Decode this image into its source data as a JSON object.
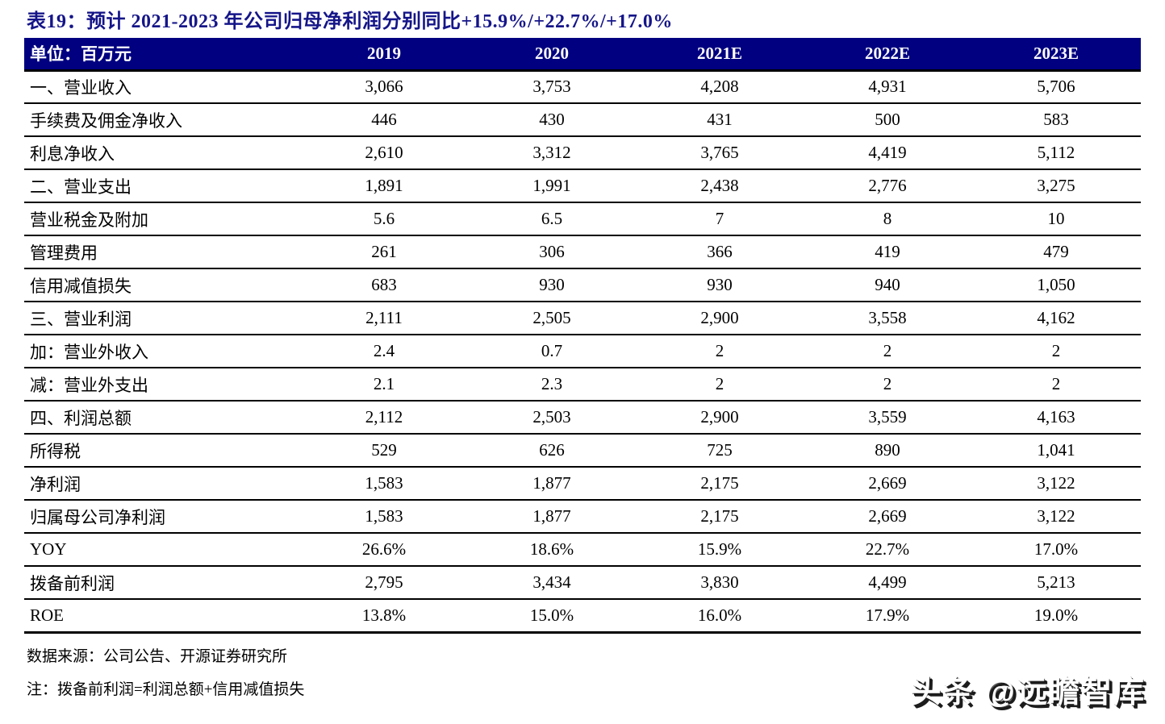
{
  "title": "表19：预计 2021-2023 年公司归母净利润分别同比+15.9%/+22.7%/+17.0%",
  "table": {
    "unit_label": "单位：百万元",
    "columns": [
      "2019",
      "2020",
      "2021E",
      "2022E",
      "2023E"
    ],
    "rows": [
      {
        "label": "一、营业收入",
        "values": [
          "3,066",
          "3,753",
          "4,208",
          "4,931",
          "5,706"
        ]
      },
      {
        "label": "手续费及佣金净收入",
        "values": [
          "446",
          "430",
          "431",
          "500",
          "583"
        ]
      },
      {
        "label": "利息净收入",
        "values": [
          "2,610",
          "3,312",
          "3,765",
          "4,419",
          "5,112"
        ]
      },
      {
        "label": "二、营业支出",
        "values": [
          "1,891",
          "1,991",
          "2,438",
          "2,776",
          "3,275"
        ]
      },
      {
        "label": "营业税金及附加",
        "values": [
          "5.6",
          "6.5",
          "7",
          "8",
          "10"
        ]
      },
      {
        "label": "管理费用",
        "values": [
          "261",
          "306",
          "366",
          "419",
          "479"
        ]
      },
      {
        "label": "信用减值损失",
        "values": [
          "683",
          "930",
          "930",
          "940",
          "1,050"
        ]
      },
      {
        "label": "三、营业利润",
        "values": [
          "2,111",
          "2,505",
          "2,900",
          "3,558",
          "4,162"
        ]
      },
      {
        "label": "加：营业外收入",
        "values": [
          "2.4",
          "0.7",
          "2",
          "2",
          "2"
        ]
      },
      {
        "label": "减：营业外支出",
        "values": [
          "2.1",
          "2.3",
          "2",
          "2",
          "2"
        ]
      },
      {
        "label": "四、利润总额",
        "values": [
          "2,112",
          "2,503",
          "2,900",
          "3,559",
          "4,163"
        ]
      },
      {
        "label": "所得税",
        "values": [
          "529",
          "626",
          "725",
          "890",
          "1,041"
        ]
      },
      {
        "label": "净利润",
        "values": [
          "1,583",
          "1,877",
          "2,175",
          "2,669",
          "3,122"
        ]
      },
      {
        "label": "归属母公司净利润",
        "values": [
          "1,583",
          "1,877",
          "2,175",
          "2,669",
          "3,122"
        ]
      },
      {
        "label": "YOY",
        "values": [
          "26.6%",
          "18.6%",
          "15.9%",
          "22.7%",
          "17.0%"
        ]
      },
      {
        "label": "拨备前利润",
        "values": [
          "2,795",
          "3,434",
          "3,830",
          "4,499",
          "5,213"
        ]
      },
      {
        "label": "ROE",
        "values": [
          "13.8%",
          "15.0%",
          "16.0%",
          "17.9%",
          "19.0%"
        ]
      }
    ]
  },
  "footer": {
    "source": "数据来源：公司公告、开源证券研究所",
    "note": "注：拨备前利润=利润总额+信用减值损失"
  },
  "watermark": "头条 @远瞻智库",
  "colors": {
    "header_bg": "#000080",
    "title": "#151589",
    "border": "#000000"
  }
}
